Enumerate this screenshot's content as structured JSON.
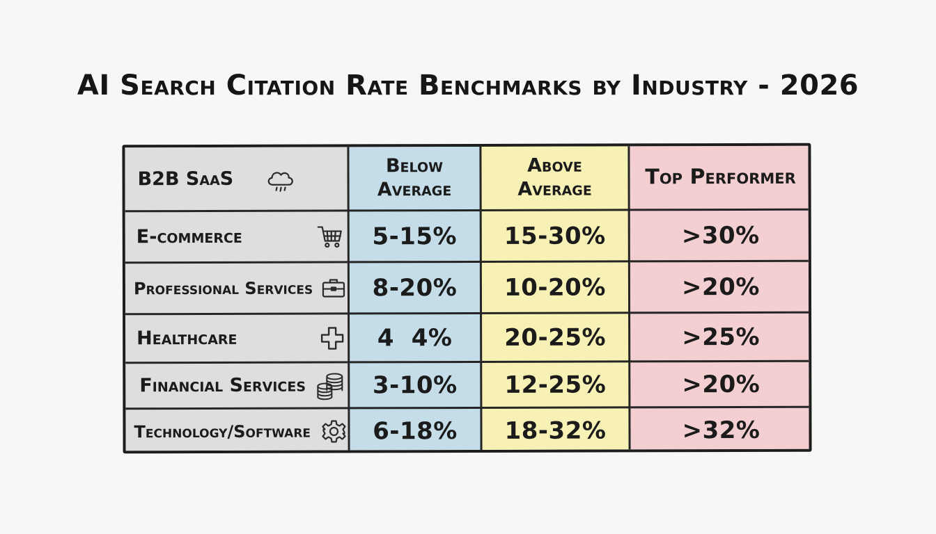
{
  "chart_data": {
    "type": "table",
    "title": "AI Search Citation Rate Benchmarks by Industry - 2026",
    "corner_label": "B2B SaaS",
    "corner_icon": "cloud-icon",
    "columns": [
      "Below\nAverage",
      "Above\nAverage",
      "Top Performer"
    ],
    "column_colors": [
      "#c4dde8",
      "#f8f1b5",
      "#f3cfd1"
    ],
    "label_column_color": "#dedede",
    "rows": [
      {
        "label": "E-commerce",
        "icon": "shopping-cart-icon",
        "values": [
          "5-15%",
          "15-30%",
          ">30%"
        ]
      },
      {
        "label": "Professional Services",
        "icon": "briefcase-icon",
        "values": [
          "8-20%",
          "10-20%",
          ">20%"
        ]
      },
      {
        "label": "Healthcare",
        "icon": "medical-cross-icon",
        "values": [
          "4  4%",
          "20-25%",
          ">25%"
        ]
      },
      {
        "label": "Financial Services",
        "icon": "coin-stack-icon",
        "values": [
          "3-10%",
          "12-25%",
          ">20%"
        ]
      },
      {
        "label": "Technology/Software",
        "icon": "gear-icon",
        "values": [
          "6-18%",
          "18-32%",
          ">32%"
        ]
      }
    ]
  }
}
